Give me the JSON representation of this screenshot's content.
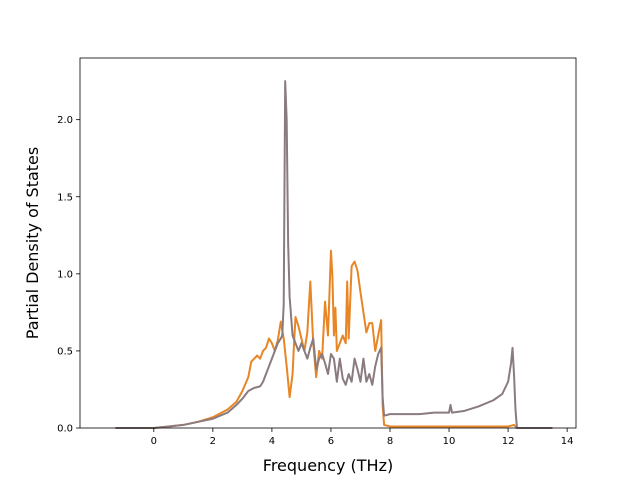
{
  "chart_data": {
    "type": "line",
    "title": "",
    "xlabel": "Frequency (THz)",
    "ylabel": "Partial Density of States",
    "xlim": [
      -2.5,
      14.3
    ],
    "ylim": [
      0.0,
      2.4
    ],
    "xticks": [
      0,
      2,
      4,
      6,
      8,
      10,
      12,
      14
    ],
    "xtick_labels": [
      "0",
      "2",
      "4",
      "6",
      "8",
      "10",
      "12",
      "14"
    ],
    "yticks": [
      0.0,
      0.5,
      1.0,
      1.5,
      2.0
    ],
    "ytick_labels": [
      "0.0",
      "0.5",
      "1.0",
      "1.5",
      "2.0"
    ],
    "grid": false,
    "legend": null,
    "series": [
      {
        "color": "#e88525",
        "x": [
          -1.3,
          -0.3,
          0.0,
          0.5,
          1.0,
          1.5,
          2.0,
          2.5,
          2.8,
          3.0,
          3.2,
          3.3,
          3.4,
          3.5,
          3.6,
          3.7,
          3.8,
          3.9,
          4.0,
          4.1,
          4.2,
          4.3,
          4.4,
          4.5,
          4.6,
          4.7,
          4.75,
          4.8,
          4.9,
          5.0,
          5.1,
          5.2,
          5.3,
          5.4,
          5.5,
          5.6,
          5.7,
          5.8,
          5.9,
          6.0,
          6.05,
          6.1,
          6.15,
          6.2,
          6.3,
          6.4,
          6.5,
          6.55,
          6.6,
          6.7,
          6.8,
          6.9,
          7.0,
          7.1,
          7.2,
          7.3,
          7.4,
          7.5,
          7.6,
          7.7,
          7.75,
          7.8,
          8.0,
          9.0,
          10.0,
          11.0,
          12.0,
          12.2,
          12.25,
          12.3,
          13.5
        ],
        "y": [
          0.0,
          0.0,
          0.0,
          0.01,
          0.02,
          0.04,
          0.07,
          0.12,
          0.17,
          0.24,
          0.33,
          0.43,
          0.45,
          0.47,
          0.45,
          0.5,
          0.52,
          0.58,
          0.55,
          0.5,
          0.57,
          0.69,
          0.58,
          0.4,
          0.2,
          0.35,
          0.55,
          0.72,
          0.66,
          0.58,
          0.5,
          0.62,
          0.95,
          0.55,
          0.33,
          0.5,
          0.45,
          0.82,
          0.6,
          1.15,
          0.98,
          0.6,
          0.78,
          0.5,
          0.55,
          0.6,
          0.55,
          0.95,
          0.58,
          1.05,
          1.08,
          1.02,
          0.88,
          0.75,
          0.62,
          0.68,
          0.68,
          0.5,
          0.6,
          0.7,
          0.15,
          0.02,
          0.01,
          0.01,
          0.01,
          0.01,
          0.01,
          0.02,
          0.01,
          0.0,
          0.0
        ]
      },
      {
        "color": "#8a7b7f",
        "x": [
          -1.3,
          -0.3,
          0.0,
          0.5,
          1.0,
          1.5,
          2.0,
          2.5,
          2.8,
          3.0,
          3.2,
          3.4,
          3.6,
          3.7,
          3.8,
          3.9,
          4.0,
          4.1,
          4.2,
          4.3,
          4.35,
          4.4,
          4.45,
          4.5,
          4.55,
          4.6,
          4.7,
          4.8,
          4.9,
          5.0,
          5.1,
          5.2,
          5.3,
          5.4,
          5.5,
          5.6,
          5.7,
          5.8,
          5.9,
          6.0,
          6.1,
          6.2,
          6.3,
          6.4,
          6.5,
          6.6,
          6.7,
          6.8,
          6.9,
          7.0,
          7.1,
          7.2,
          7.3,
          7.4,
          7.5,
          7.6,
          7.7,
          7.75,
          7.8,
          8.0,
          9.0,
          9.5,
          10.0,
          10.05,
          10.1,
          10.5,
          11.0,
          11.5,
          11.8,
          12.0,
          12.1,
          12.15,
          12.2,
          12.25,
          12.3,
          13.5
        ],
        "y": [
          0.0,
          0.0,
          0.0,
          0.01,
          0.02,
          0.04,
          0.06,
          0.1,
          0.15,
          0.19,
          0.24,
          0.26,
          0.27,
          0.3,
          0.35,
          0.4,
          0.45,
          0.5,
          0.55,
          0.58,
          0.6,
          0.8,
          2.25,
          2.0,
          1.2,
          0.85,
          0.6,
          0.55,
          0.5,
          0.55,
          0.5,
          0.45,
          0.52,
          0.58,
          0.38,
          0.45,
          0.48,
          0.42,
          0.35,
          0.48,
          0.45,
          0.3,
          0.45,
          0.32,
          0.28,
          0.35,
          0.3,
          0.45,
          0.38,
          0.3,
          0.45,
          0.3,
          0.35,
          0.28,
          0.4,
          0.48,
          0.52,
          0.2,
          0.08,
          0.09,
          0.09,
          0.1,
          0.1,
          0.15,
          0.1,
          0.11,
          0.14,
          0.18,
          0.22,
          0.3,
          0.42,
          0.52,
          0.35,
          0.12,
          0.0,
          0.0
        ]
      }
    ]
  }
}
